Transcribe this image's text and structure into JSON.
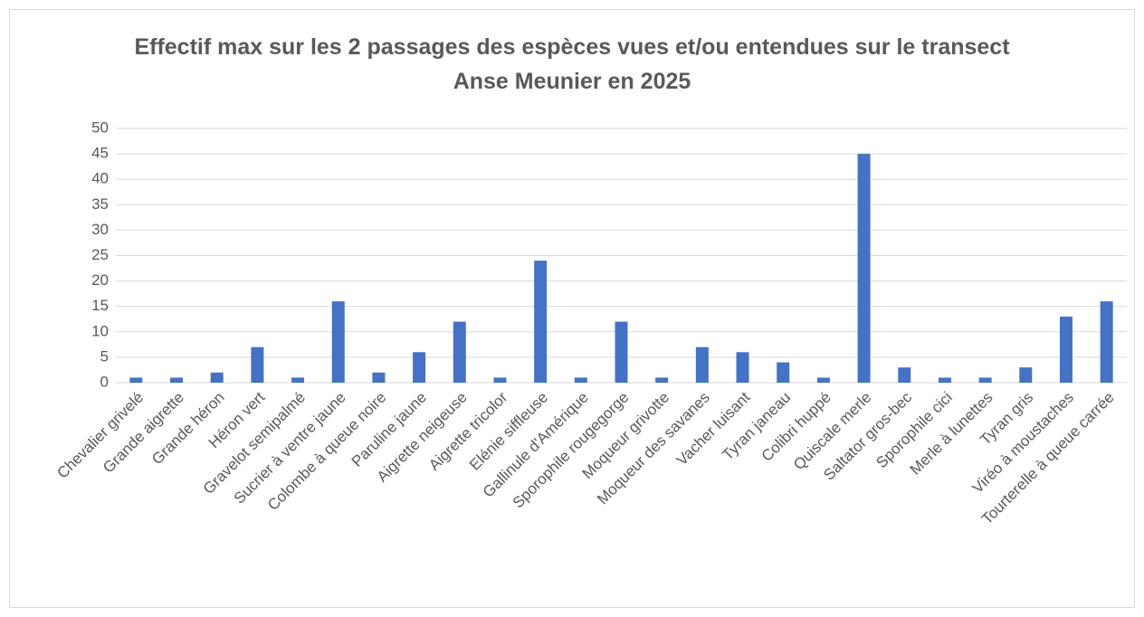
{
  "chart_data": {
    "type": "bar",
    "title": "Effectif max sur les 2 passages des espèces vues et/ou entendues sur le transect Anse Meunier en 2025",
    "categories": [
      "Chevalier grivelé",
      "Grande aigrette",
      "Grande héron",
      "Héron vert",
      "Gravelot semipalmé",
      "Sucrier à ventre jaune",
      "Colombe à queue noire",
      "Paruline jaune",
      "Aigrette neigeuse",
      "Aigrette tricolor",
      "Elénie siffleuse",
      "Gallinule d'Amérique",
      "Sporophile rougegorge",
      "Moqueur grivotte",
      "Moqueur des savanes",
      "Vacher luisant",
      "Tyran janeau",
      "Colibri huppé",
      "Quiscale merle",
      "Saltator gros-bec",
      "Sporophile cici",
      "Merle à lunettes",
      "Tyran gris",
      "Viréo à moustaches",
      "Tourterelle à queue carrée"
    ],
    "values": [
      1,
      1,
      2,
      7,
      1,
      16,
      2,
      6,
      12,
      1,
      24,
      1,
      12,
      1,
      7,
      6,
      4,
      1,
      45,
      3,
      1,
      1,
      3,
      13,
      16
    ],
    "color": "#4472c4",
    "ylim": [
      0,
      50
    ],
    "yticks": [
      0,
      5,
      10,
      15,
      20,
      25,
      30,
      35,
      40,
      45,
      50
    ],
    "grid": true
  }
}
